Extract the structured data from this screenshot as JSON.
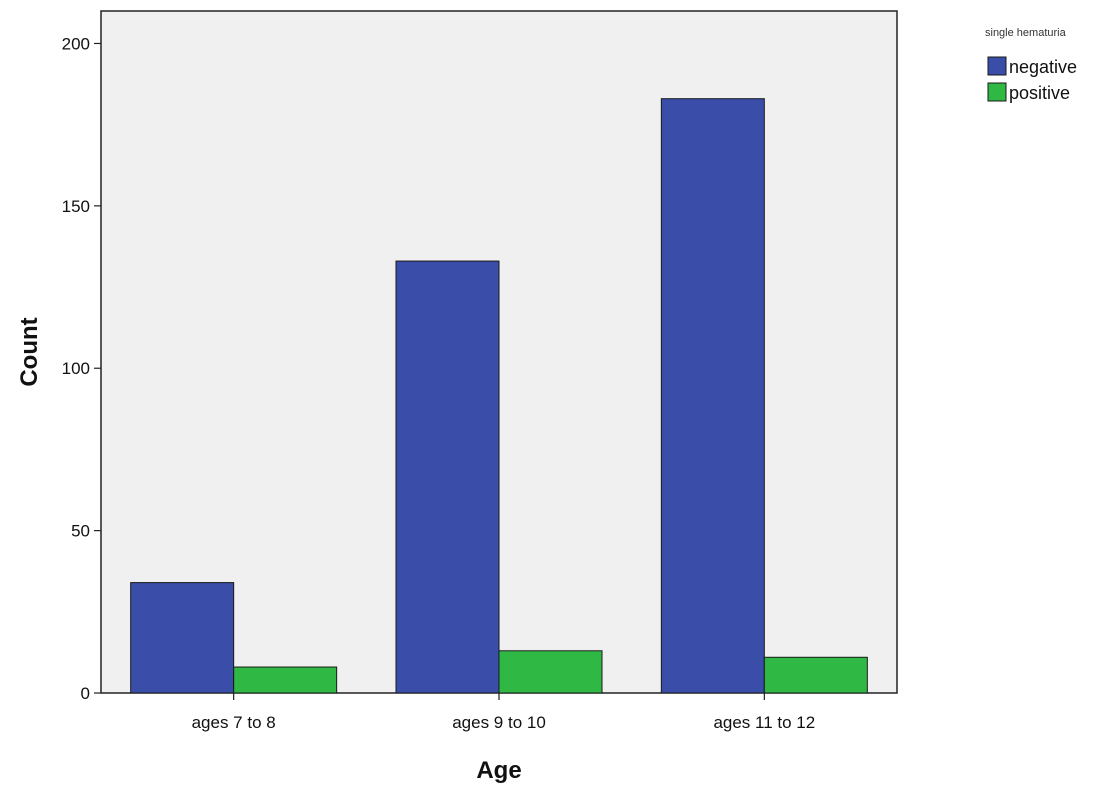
{
  "chart_data": {
    "type": "bar",
    "title": "",
    "xlabel": "Age",
    "ylabel": "Count",
    "categories": [
      "ages 7 to 8",
      "ages 9 to 10",
      "ages 11 to 12"
    ],
    "series": [
      {
        "name": "negative",
        "values": [
          34,
          133,
          183
        ],
        "color": "#3a4da8"
      },
      {
        "name": "positive",
        "values": [
          8,
          13,
          11
        ],
        "color": "#2fb844"
      }
    ],
    "ylim": [
      0,
      210
    ],
    "yticks": [
      0,
      50,
      100,
      150,
      200
    ],
    "legend": {
      "title": "single hematuria",
      "position": "top-right"
    },
    "grid": false
  }
}
